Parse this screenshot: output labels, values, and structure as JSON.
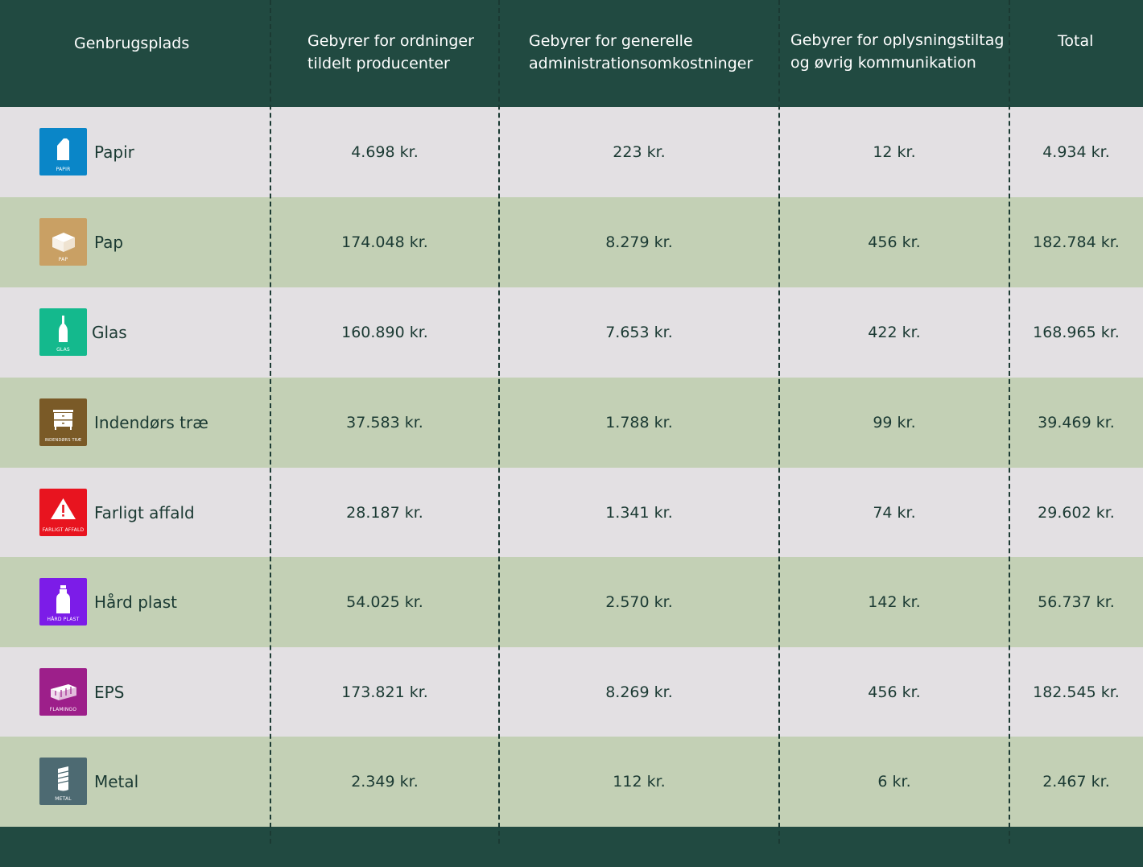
{
  "header": {
    "col1": "Genbrugsplads",
    "col2_line1": "Gebyrer for ordninger",
    "col2_line2": "tildelt producenter",
    "col3_line1": "Gebyrer for generelle",
    "col3_line2": "administrationsomkostninger",
    "col4_line1": "Gebyrer for oplysningstiltag",
    "col4_line2": "og øvrig kommunikation",
    "col5": "Total"
  },
  "rows": [
    {
      "name": "Papir",
      "icon": "paper-icon",
      "icon_label": "PAPIR",
      "icon_color": "#0a86c8",
      "producer_fee": "4.698 kr.",
      "admin_fee": "223 kr.",
      "info_fee": "12 kr.",
      "total": "4.934 kr."
    },
    {
      "name": "Pap",
      "icon": "cardboard-box-icon",
      "icon_label": "PAP",
      "icon_color": "#c9a064",
      "producer_fee": "174.048 kr.",
      "admin_fee": "8.279 kr.",
      "info_fee": "456 kr.",
      "total": "182.784 kr."
    },
    {
      "name": "Glas",
      "icon": "glass-bottle-icon",
      "icon_label": "GLAS",
      "icon_color": "#14b98d",
      "producer_fee": "160.890 kr.",
      "admin_fee": "7.653 kr.",
      "info_fee": "422 kr.",
      "total": "168.965 kr."
    },
    {
      "name": "Indendørs træ",
      "icon": "wood-furniture-icon",
      "icon_label": "INDENDØRS TRÆ",
      "icon_color": "#7a5a27",
      "producer_fee": "37.583 kr.",
      "admin_fee": "1.788 kr.",
      "info_fee": "99 kr.",
      "total": "39.469 kr."
    },
    {
      "name": "Farligt affald",
      "icon": "hazard-warning-icon",
      "icon_label": "FARLIGT AFFALD",
      "icon_color": "#e8141f",
      "producer_fee": "28.187 kr.",
      "admin_fee": "1.341 kr.",
      "info_fee": "74 kr.",
      "total": "29.602 kr."
    },
    {
      "name": "Hård plast",
      "icon": "plastic-bottle-icon",
      "icon_label": "HÅRD PLAST",
      "icon_color": "#7c1ce8",
      "producer_fee": "54.025 kr.",
      "admin_fee": "2.570 kr.",
      "info_fee": "142 kr.",
      "total": "56.737 kr."
    },
    {
      "name": "EPS",
      "icon": "polystyrene-icon",
      "icon_label": "FLAMINGO",
      "icon_color": "#9d1f8a",
      "producer_fee": "173.821 kr.",
      "admin_fee": "8.269 kr.",
      "info_fee": "456 kr.",
      "total": "182.545 kr."
    },
    {
      "name": "Metal",
      "icon": "metal-can-icon",
      "icon_label": "METAL",
      "icon_color": "#4d6a72",
      "producer_fee": "2.349 kr.",
      "admin_fee": "112 kr.",
      "info_fee": "6 kr.",
      "total": "2.467 kr."
    }
  ]
}
